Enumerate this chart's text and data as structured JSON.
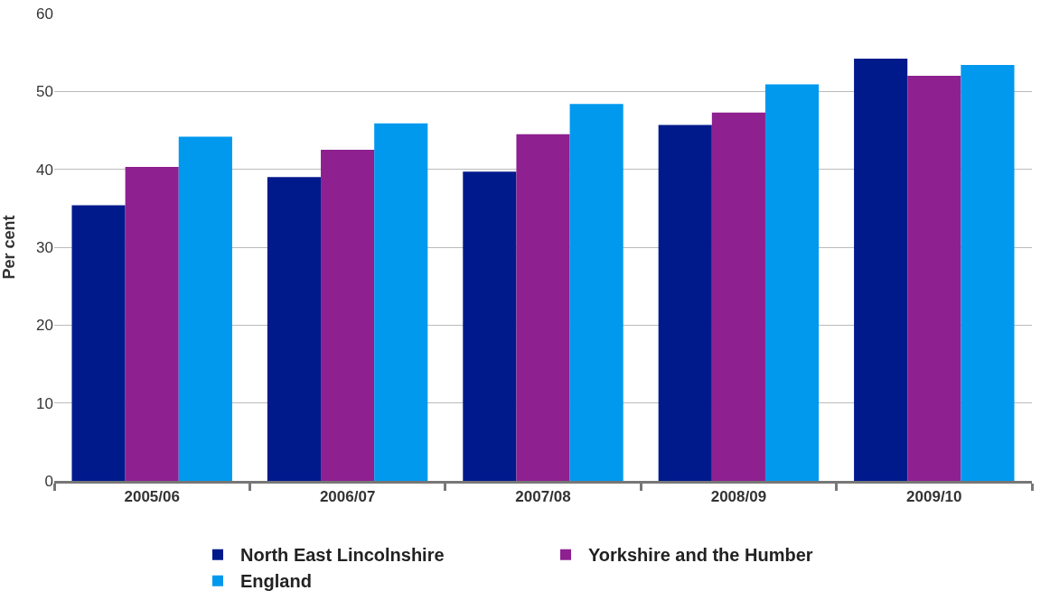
{
  "chart_data": {
    "type": "bar",
    "ylabel": "Per cent",
    "categories": [
      "2005/06",
      "2006/07",
      "2007/08",
      "2008/09",
      "2009/10"
    ],
    "series": [
      {
        "name": "North East Lincolnshire",
        "color": "#001a8c",
        "values": [
          35.4,
          39.0,
          39.7,
          45.7,
          54.2
        ]
      },
      {
        "name": "Yorkshire and the Humber",
        "color": "#8e2090",
        "values": [
          40.3,
          42.5,
          44.5,
          47.3,
          52.0
        ]
      },
      {
        "name": "England",
        "color": "#0099ee",
        "values": [
          44.2,
          45.9,
          48.4,
          50.9,
          53.4
        ]
      }
    ],
    "ylim": [
      0,
      60
    ],
    "yticks": [
      0,
      10,
      20,
      30,
      40,
      50,
      60
    ],
    "grid": "y",
    "legend": "bottom"
  }
}
